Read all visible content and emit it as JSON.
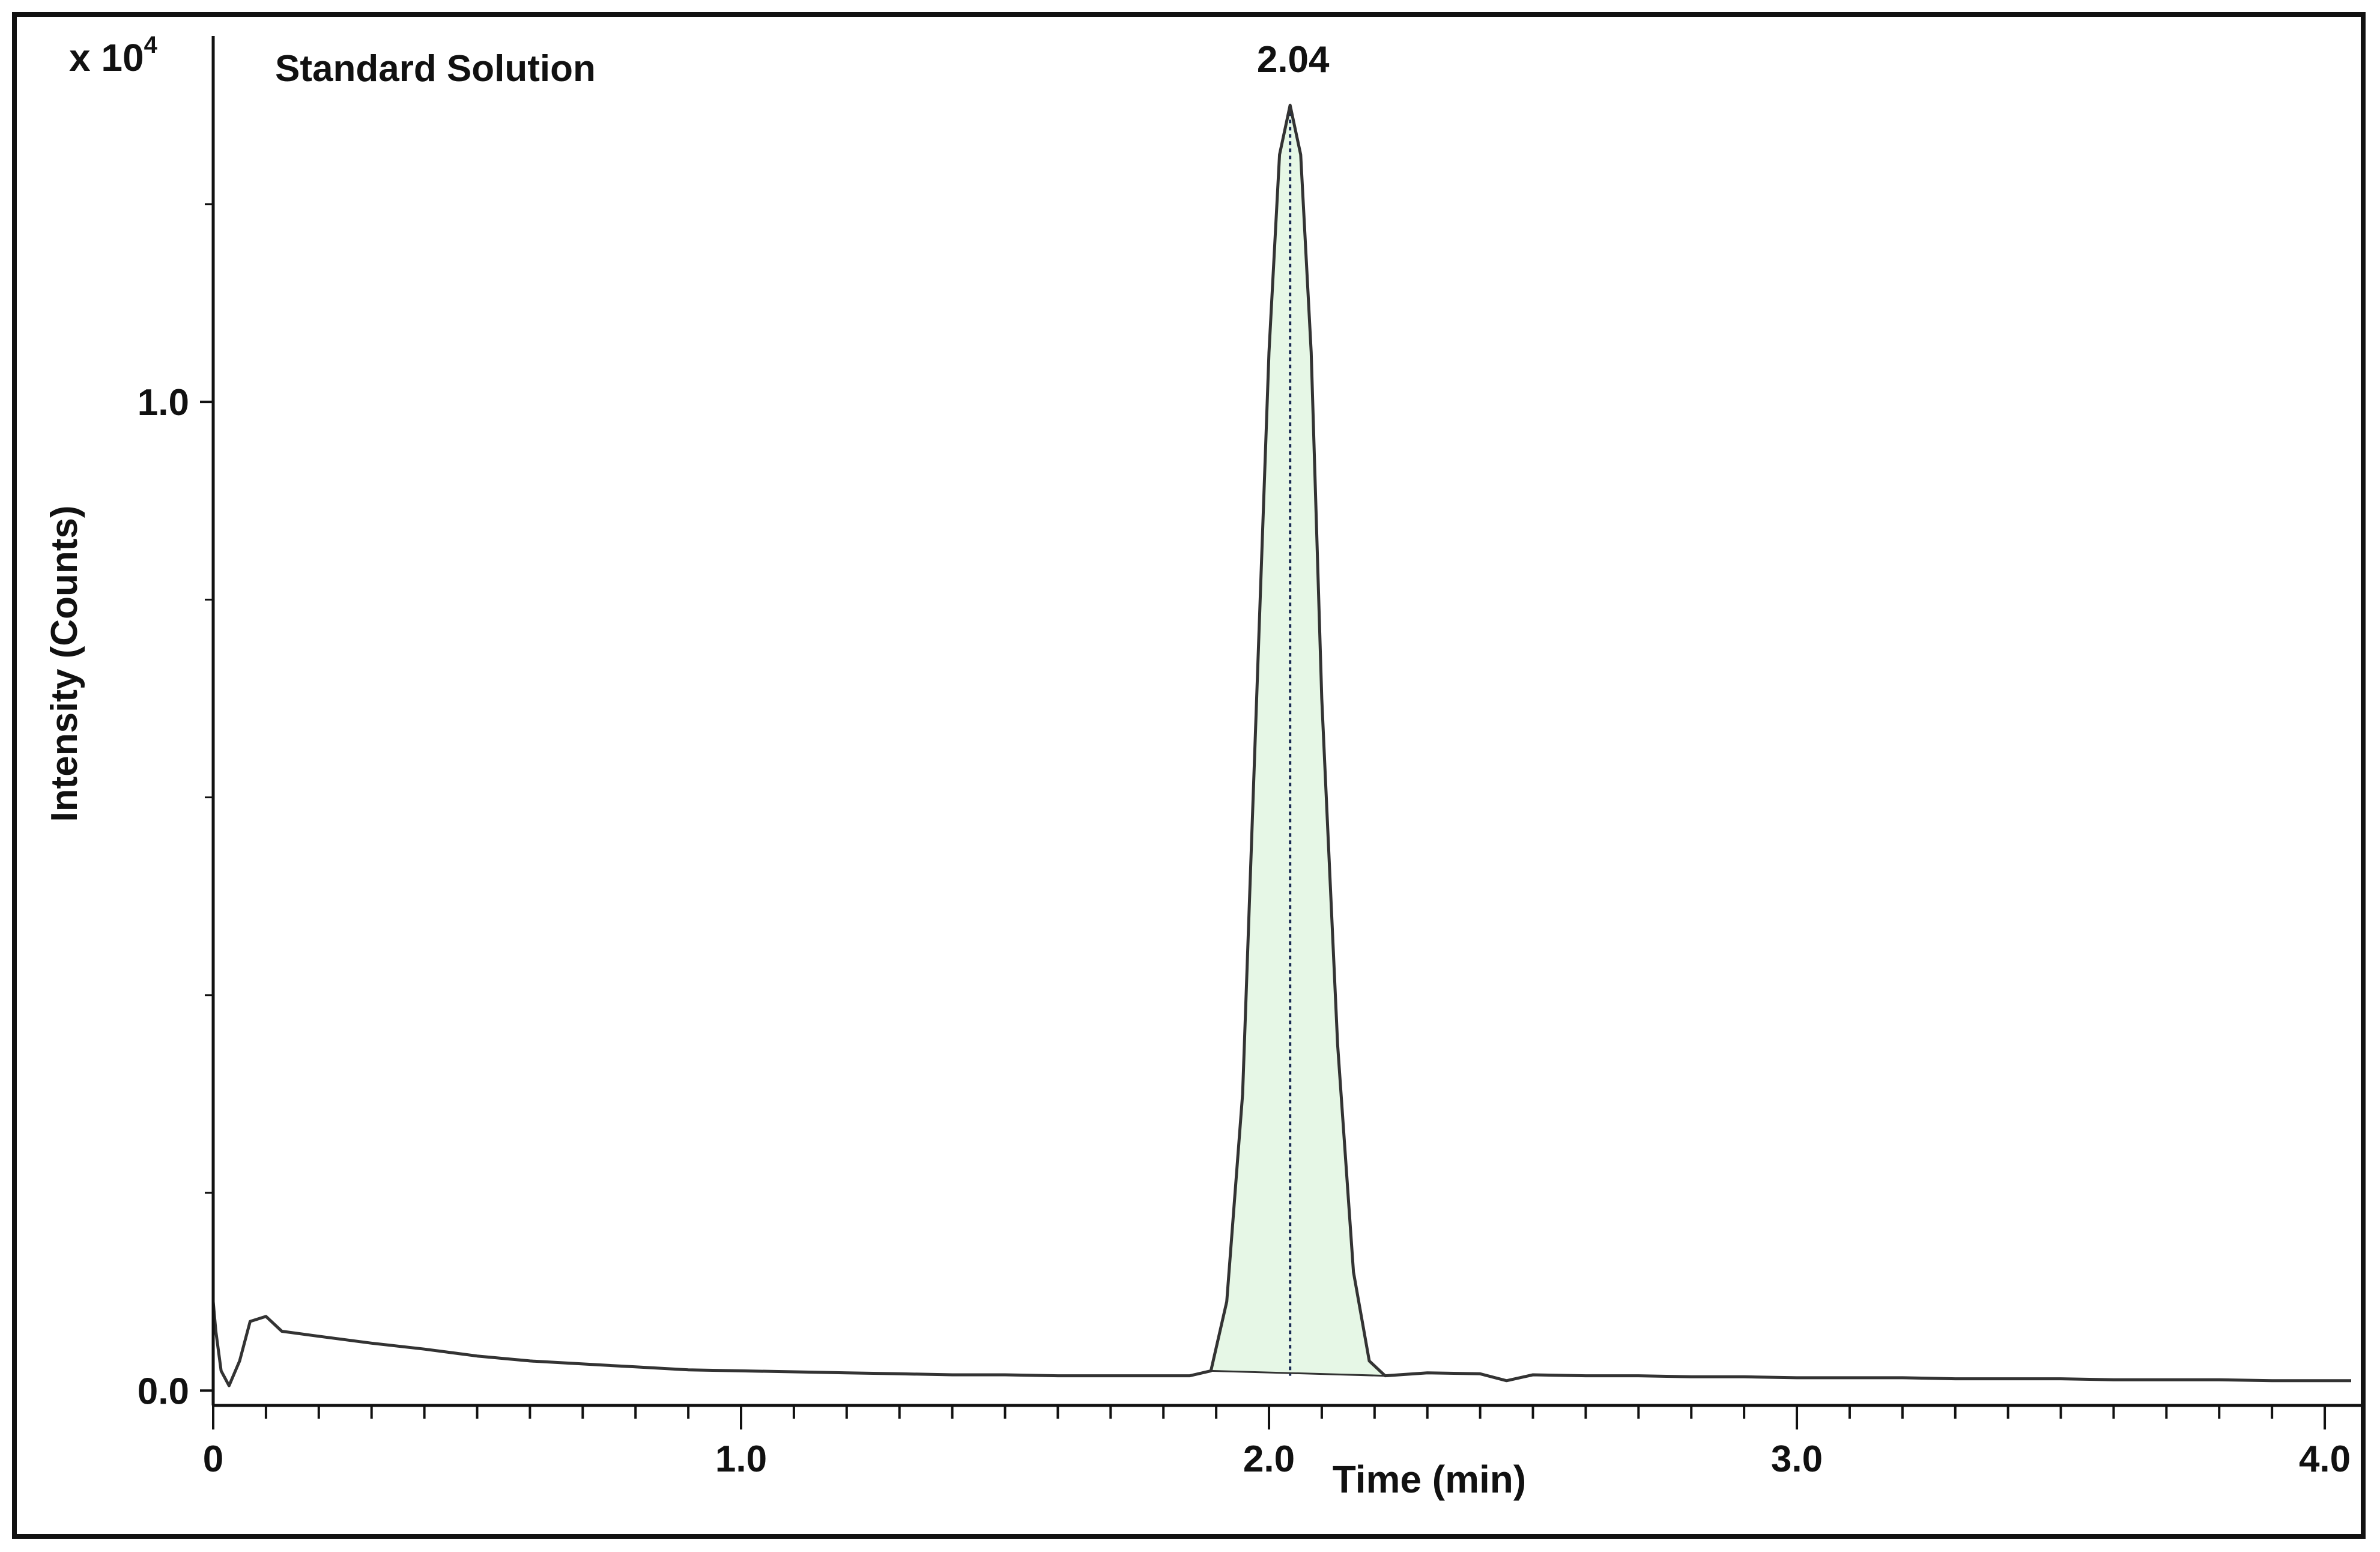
{
  "chart_data": {
    "type": "line",
    "title": "Standard Solution",
    "xlabel": "Time (min)",
    "ylabel": "Intensity (Counts)",
    "y_multiplier_label": "x 10",
    "y_multiplier_exponent": "4",
    "xlim": [
      0,
      4.05
    ],
    "ylim": [
      -0.015,
      1.37
    ],
    "x_ticks": [
      {
        "value": 0,
        "label": "0"
      },
      {
        "value": 1.0,
        "label": "1.0"
      },
      {
        "value": 2.0,
        "label": "2.0"
      },
      {
        "value": 3.0,
        "label": "3.0"
      },
      {
        "value": 4.0,
        "label": "4.0"
      }
    ],
    "x_minor_step": 0.1,
    "y_ticks": [
      {
        "value": 0.0,
        "label": "0.0"
      },
      {
        "value": 1.0,
        "label": "1.0"
      }
    ],
    "y_minor_ticks": [
      0.2,
      0.4,
      0.6,
      0.8,
      1.2
    ],
    "peak": {
      "apex_time": 2.04,
      "label": "2.04",
      "height": 1.3,
      "start_time": 1.89,
      "end_time": 2.22,
      "fill_color": "#e6f7e6"
    },
    "series": [
      {
        "name": "Standard Solution",
        "color": "#333333",
        "x": [
          0.0,
          0.005,
          0.015,
          0.03,
          0.05,
          0.07,
          0.1,
          0.13,
          0.2,
          0.3,
          0.4,
          0.5,
          0.6,
          0.7,
          0.8,
          0.9,
          1.0,
          1.1,
          1.2,
          1.3,
          1.4,
          1.5,
          1.6,
          1.7,
          1.8,
          1.85,
          1.89,
          1.92,
          1.95,
          1.98,
          2.0,
          2.02,
          2.04,
          2.06,
          2.08,
          2.1,
          2.13,
          2.16,
          2.19,
          2.22,
          2.3,
          2.4,
          2.45,
          2.5,
          2.6,
          2.7,
          2.8,
          2.9,
          3.0,
          3.1,
          3.2,
          3.3,
          3.4,
          3.5,
          3.6,
          3.7,
          3.8,
          3.9,
          4.0,
          4.05
        ],
        "y": [
          0.09,
          0.06,
          0.02,
          0.005,
          0.03,
          0.07,
          0.075,
          0.06,
          0.055,
          0.048,
          0.042,
          0.035,
          0.03,
          0.027,
          0.024,
          0.021,
          0.02,
          0.019,
          0.018,
          0.017,
          0.016,
          0.016,
          0.015,
          0.015,
          0.015,
          0.015,
          0.02,
          0.09,
          0.3,
          0.75,
          1.05,
          1.25,
          1.3,
          1.25,
          1.05,
          0.7,
          0.35,
          0.12,
          0.03,
          0.015,
          0.018,
          0.017,
          0.01,
          0.016,
          0.015,
          0.015,
          0.014,
          0.014,
          0.013,
          0.013,
          0.013,
          0.012,
          0.012,
          0.012,
          0.011,
          0.011,
          0.011,
          0.01,
          0.01,
          0.01
        ]
      }
    ]
  }
}
